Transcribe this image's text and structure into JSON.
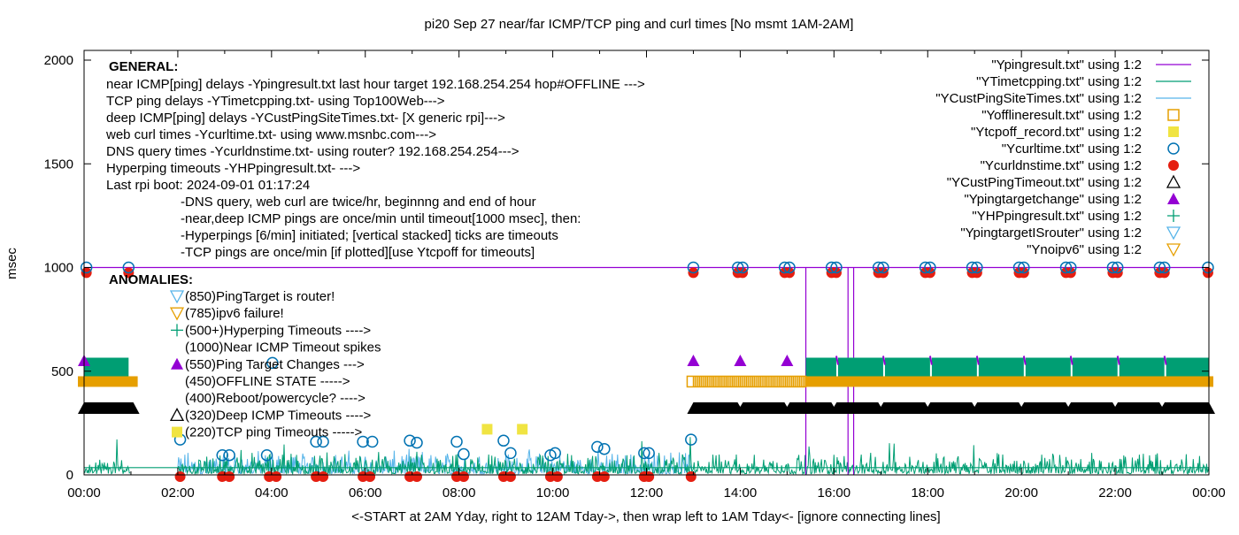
{
  "chart_data": {
    "type": "scatter",
    "title": "pi20 Sep 27  near/far ICMP/TCP ping and curl times [No msmt 1AM-2AM]",
    "xlabel": "<-START at 2AM Yday, right to 12AM Tday->, then wrap left to 1AM Tday<- [ignore connecting lines]",
    "ylabel": "msec",
    "xlim": [
      0,
      24
    ],
    "ylim": [
      0,
      2000
    ],
    "x_ticks": [
      "00:00",
      "02:00",
      "04:00",
      "06:00",
      "08:00",
      "10:00",
      "12:00",
      "14:00",
      "16:00",
      "18:00",
      "20:00",
      "22:00",
      "00:00"
    ],
    "y_ticks": [
      0,
      500,
      1000,
      1500,
      2000
    ],
    "legend_position": "top-right",
    "legend": [
      {
        "label": "\"Ypingresult.txt\" using 1:2",
        "style": "line",
        "color": "#9400d3"
      },
      {
        "label": "\"YTimetcpping.txt\" using 1:2",
        "style": "line",
        "color": "#009e73"
      },
      {
        "label": "\"YCustPingSiteTimes.txt\" using 1:2",
        "style": "line",
        "color": "#56b4e9"
      },
      {
        "label": "\"Yofflineresult.txt\" using 1:2",
        "style": "open-square",
        "color": "#e69f00"
      },
      {
        "label": "\"Ytcpoff_record.txt\" using 1:2",
        "style": "filled-square",
        "color": "#f0e442"
      },
      {
        "label": "\"Ycurltime.txt\" using 1:2",
        "style": "open-circle",
        "color": "#0072b2"
      },
      {
        "label": "\"Ycurldnstime.txt\" using 1:2",
        "style": "filled-circle",
        "color": "#e51e10"
      },
      {
        "label": "\"YCustPingTimeout.txt\" using 1:2",
        "style": "open-triangle",
        "color": "#000000"
      },
      {
        "label": "\"Ypingtargetchange\" using 1:2",
        "style": "filled-triangle",
        "color": "#9400d3"
      },
      {
        "label": "\"YHPpingresult.txt\" using 1:2",
        "style": "plus",
        "color": "#009e73"
      },
      {
        "label": "\"YpingtargetISrouter\" using 1:2",
        "style": "open-down-triangle",
        "color": "#56b4e9"
      },
      {
        "label": "\"Ynoipv6\" using 1:2",
        "style": "open-down-triangle",
        "color": "#e69f00"
      }
    ],
    "general_header": "GENERAL:",
    "general_lines": [
      "near ICMP[ping] delays -Ypingresult.txt last hour target 192.168.254.254 hop#OFFLINE --->",
      "TCP ping delays -YTimetcpping.txt- using Top100Web--->",
      "deep ICMP[ping] delays -YCustPingSiteTimes.txt- [X generic rpi]--->",
      "web curl times -Ycurltime.txt- using www.msnbc.com--->",
      "DNS query times -Ycurldnstime.txt- using router? 192.168.254.254--->",
      "Hyperping timeouts -YHPpingresult.txt- --->",
      "Last rpi boot: 2024-09-01 01:17:24"
    ],
    "general_notes": [
      "-DNS query, web curl are twice/hr, beginnng and end of hour",
      "-near,deep ICMP pings are once/min until timeout[1000 msec], then:",
      "  -Hyperpings [6/min] initiated; [vertical stacked] ticks are timeouts",
      "-TCP pings are once/min [if plotted][use Ytcpoff for timeouts]"
    ],
    "anomalies_header": "ANOMALIES:",
    "anomalies": [
      {
        "text": "(850)PingTarget is router!",
        "marker": "open-down-triangle",
        "color": "#56b4e9"
      },
      {
        "text": "(785)ipv6 failure!",
        "marker": "open-down-triangle",
        "color": "#e69f00"
      },
      {
        "text": "(500+)Hyperping Timeouts ---->",
        "marker": "plus",
        "color": "#009e73"
      },
      {
        "text": "(1000)Near ICMP Timeout spikes",
        "marker": "none",
        "color": ""
      },
      {
        "text": "(550)Ping Target Changes --->",
        "marker": "filled-triangle",
        "color": "#9400d3"
      },
      {
        "text": "(450)OFFLINE STATE ----->",
        "marker": "none",
        "color": ""
      },
      {
        "text": "(400)Reboot/powercycle? ---->",
        "marker": "none",
        "color": ""
      },
      {
        "text": "(320)Deep ICMP Timeouts ---->",
        "marker": "open-triangle",
        "color": "#000000"
      },
      {
        "text": "(220)TCP ping Timeouts ----->",
        "marker": "filled-square",
        "color": "#f0e442"
      }
    ],
    "series": {
      "near_icmp_timeout_level": 1000,
      "near_icmp_spikes_hours": [
        15.4,
        16.3,
        16.42
      ],
      "curl_times": [
        [
          0.05,
          1000
        ],
        [
          0.95,
          1000
        ],
        [
          2.05,
          170
        ],
        [
          2.95,
          95
        ],
        [
          3.1,
          95
        ],
        [
          3.9,
          95
        ],
        [
          4.02,
          540
        ],
        [
          4.95,
          160
        ],
        [
          5.1,
          160
        ],
        [
          5.95,
          160
        ],
        [
          6.15,
          160
        ],
        [
          6.95,
          165
        ],
        [
          7.1,
          155
        ],
        [
          7.95,
          160
        ],
        [
          8.1,
          100
        ],
        [
          8.95,
          165
        ],
        [
          9.1,
          105
        ],
        [
          9.95,
          95
        ],
        [
          10.05,
          105
        ],
        [
          10.95,
          135
        ],
        [
          11.1,
          125
        ],
        [
          11.95,
          105
        ],
        [
          12.05,
          105
        ],
        [
          12.95,
          170
        ],
        [
          13.0,
          1000
        ],
        [
          13.95,
          1000
        ],
        [
          14.05,
          1000
        ],
        [
          14.95,
          1000
        ],
        [
          15.05,
          1000
        ],
        [
          15.95,
          1000
        ],
        [
          16.05,
          1000
        ],
        [
          16.95,
          1000
        ],
        [
          17.05,
          1000
        ],
        [
          17.95,
          1000
        ],
        [
          18.05,
          1000
        ],
        [
          18.95,
          1000
        ],
        [
          19.05,
          1000
        ],
        [
          19.95,
          1000
        ],
        [
          20.05,
          1000
        ],
        [
          20.95,
          1000
        ],
        [
          21.05,
          1000
        ],
        [
          21.95,
          1000
        ],
        [
          22.05,
          1000
        ],
        [
          22.95,
          1000
        ],
        [
          23.05,
          1000
        ],
        [
          23.98,
          1000
        ]
      ],
      "dns_times": [
        [
          0.05,
          975
        ],
        [
          0.95,
          975
        ],
        [
          2.05,
          0
        ],
        [
          2.95,
          0
        ],
        [
          3.1,
          0
        ],
        [
          3.95,
          0
        ],
        [
          4.1,
          0
        ],
        [
          4.95,
          0
        ],
        [
          5.1,
          0
        ],
        [
          5.95,
          0
        ],
        [
          6.1,
          0
        ],
        [
          6.95,
          0
        ],
        [
          7.1,
          0
        ],
        [
          7.95,
          0
        ],
        [
          8.1,
          0
        ],
        [
          8.95,
          0
        ],
        [
          9.1,
          0
        ],
        [
          9.95,
          0
        ],
        [
          10.1,
          0
        ],
        [
          10.95,
          0
        ],
        [
          11.1,
          0
        ],
        [
          11.95,
          0
        ],
        [
          12.05,
          0
        ],
        [
          12.95,
          0
        ],
        [
          13.0,
          975
        ],
        [
          13.95,
          975
        ],
        [
          14.05,
          975
        ],
        [
          14.95,
          975
        ],
        [
          15.05,
          975
        ],
        [
          15.95,
          975
        ],
        [
          16.05,
          975
        ],
        [
          16.95,
          975
        ],
        [
          17.05,
          975
        ],
        [
          17.95,
          975
        ],
        [
          18.05,
          975
        ],
        [
          18.95,
          975
        ],
        [
          19.05,
          975
        ],
        [
          19.95,
          975
        ],
        [
          20.05,
          975
        ],
        [
          20.95,
          975
        ],
        [
          21.05,
          975
        ],
        [
          21.95,
          975
        ],
        [
          22.05,
          975
        ],
        [
          22.95,
          975
        ],
        [
          23.05,
          975
        ],
        [
          23.98,
          975
        ]
      ],
      "tcp_ping_timeouts": [
        [
          8.6,
          220
        ],
        [
          9.35,
          220
        ]
      ],
      "ping_target_changes": [
        [
          0.0,
          550
        ],
        [
          13.0,
          550
        ],
        [
          14.0,
          550
        ],
        [
          15.0,
          550
        ]
      ],
      "hyperping_timeout_ranges": [
        [
          0.0,
          0.95
        ],
        [
          15.4,
          24.0
        ]
      ],
      "hyperping_level_range": [
        470,
        565
      ],
      "offline_ranges_hollow": [
        [
          13.0,
          15.4
        ]
      ],
      "offline_ranges_solid": [
        [
          0.0,
          1.05
        ],
        [
          15.4,
          24.0
        ]
      ],
      "offline_level": 450,
      "deep_icmp_timeout_ranges": [
        [
          0.0,
          1.05
        ],
        [
          13.0,
          24.0
        ]
      ],
      "deep_icmp_timeout_level": 320,
      "tcp_ping_baseline": 35,
      "tcp_ping_typical_range": [
        5,
        120
      ],
      "deep_icmp_typical_range": [
        5,
        110
      ]
    }
  }
}
